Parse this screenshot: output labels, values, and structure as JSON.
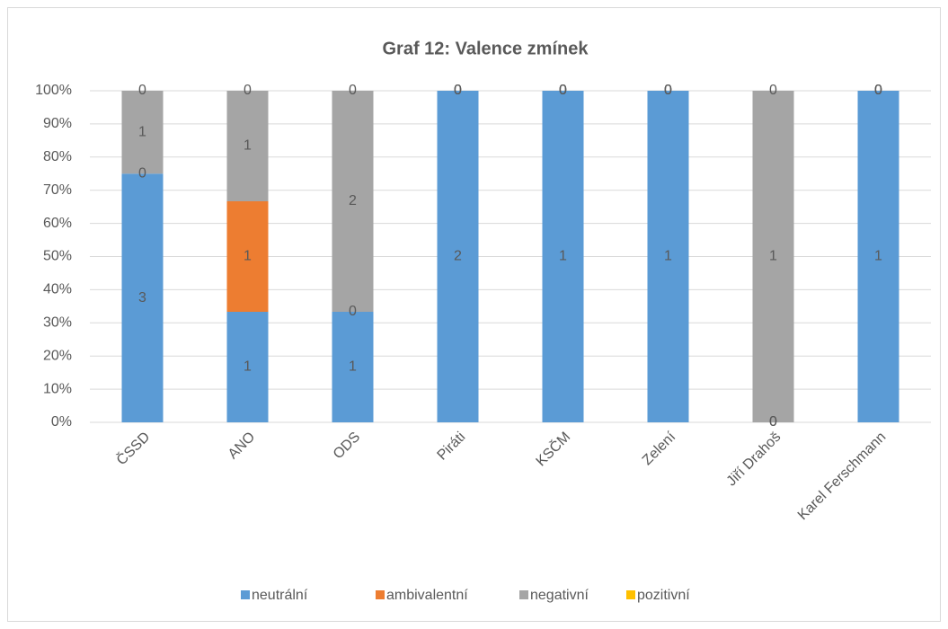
{
  "chart_data": {
    "type": "stacked100",
    "title": "Graf 12: Valence zmínek",
    "categories": [
      "ČSSD",
      "ANO",
      "ODS",
      "Piráti",
      "KSČM",
      "Zelení",
      "Jiří Drahoš",
      "Karel Ferschmann"
    ],
    "series": [
      {
        "name": "neutrální",
        "color": "#5b9bd5",
        "values": [
          3,
          1,
          1,
          2,
          1,
          1,
          0,
          1
        ]
      },
      {
        "name": "ambivalentní",
        "color": "#ed7d31",
        "values": [
          0,
          1,
          0,
          0,
          0,
          0,
          0,
          0
        ]
      },
      {
        "name": "negativní",
        "color": "#a5a5a5",
        "values": [
          1,
          1,
          2,
          0,
          0,
          0,
          1,
          0
        ]
      },
      {
        "name": "pozitivní",
        "color": "#ffc000",
        "values": [
          0,
          0,
          0,
          0,
          0,
          0,
          0,
          0
        ]
      }
    ],
    "ylim": [
      0,
      100
    ],
    "yticks": [
      {
        "value": 0,
        "label": "0%"
      },
      {
        "value": 10,
        "label": "10%"
      },
      {
        "value": 20,
        "label": "20%"
      },
      {
        "value": 30,
        "label": "30%"
      },
      {
        "value": 40,
        "label": "40%"
      },
      {
        "value": 50,
        "label": "50%"
      },
      {
        "value": 60,
        "label": "60%"
      },
      {
        "value": 70,
        "label": "70%"
      },
      {
        "value": 80,
        "label": "80%"
      },
      {
        "value": 90,
        "label": "90%"
      },
      {
        "value": 100,
        "label": "100%"
      }
    ],
    "grid": true,
    "legend": "bottom"
  }
}
